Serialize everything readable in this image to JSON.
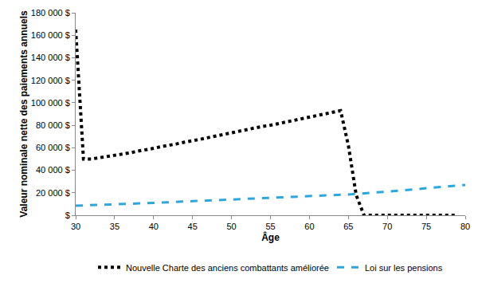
{
  "chart_data": {
    "type": "line",
    "x_label": "Âge",
    "y_label": "Valeur nominale nette des paiements annuels",
    "xlim": [
      30,
      80
    ],
    "xticks": [
      30,
      35,
      40,
      45,
      50,
      55,
      60,
      65,
      70,
      75,
      80
    ],
    "ylim": [
      0,
      180000
    ],
    "yticks": [
      {
        "value": 0,
        "label": "$"
      },
      {
        "value": 20000,
        "label": "20 000 $"
      },
      {
        "value": 40000,
        "label": "40 000 $"
      },
      {
        "value": 60000,
        "label": "60 000 $"
      },
      {
        "value": 80000,
        "label": "80 000 $"
      },
      {
        "value": 100000,
        "label": "100 000 $"
      },
      {
        "value": 120000,
        "label": "120 000 $"
      },
      {
        "value": 140000,
        "label": "140 000 $"
      },
      {
        "value": 160000,
        "label": "160 000 $"
      },
      {
        "value": 180000,
        "label": "180 000 $"
      }
    ],
    "grid": false,
    "legend": "bottom",
    "series": [
      {
        "name": "Nouvelle Charte des anciens combattants améliorée",
        "color": "#000000",
        "line_style": "dotted",
        "x": [
          30,
          31,
          32,
          33,
          34,
          35,
          36,
          37,
          38,
          39,
          40,
          41,
          42,
          43,
          44,
          45,
          46,
          47,
          48,
          49,
          50,
          51,
          52,
          53,
          54,
          55,
          56,
          57,
          58,
          59,
          60,
          61,
          62,
          63,
          64,
          65,
          66,
          67,
          68,
          69,
          70,
          71,
          72,
          73,
          74,
          75,
          76,
          77,
          78,
          79
        ],
        "values": [
          165000,
          50000,
          50000,
          51000,
          52000,
          53000,
          54000,
          55500,
          57000,
          58000,
          59500,
          61000,
          62000,
          63500,
          65000,
          66000,
          67500,
          69000,
          70500,
          72000,
          73000,
          74500,
          76000,
          77500,
          79000,
          80000,
          81500,
          83000,
          84500,
          86000,
          87500,
          89000,
          90500,
          92000,
          93000,
          62000,
          18000,
          0,
          0,
          0,
          0,
          0,
          0,
          0,
          0,
          0,
          0,
          0,
          0,
          0
        ]
      },
      {
        "name": "Loi sur les pensions",
        "color": "#29a8e0",
        "line_style": "dashed",
        "x": [
          30,
          35,
          40,
          45,
          50,
          55,
          60,
          65,
          70,
          75,
          80
        ],
        "values": [
          8500,
          9500,
          11000,
          12500,
          14000,
          15500,
          17000,
          18500,
          21000,
          24000,
          27000
        ]
      }
    ]
  }
}
